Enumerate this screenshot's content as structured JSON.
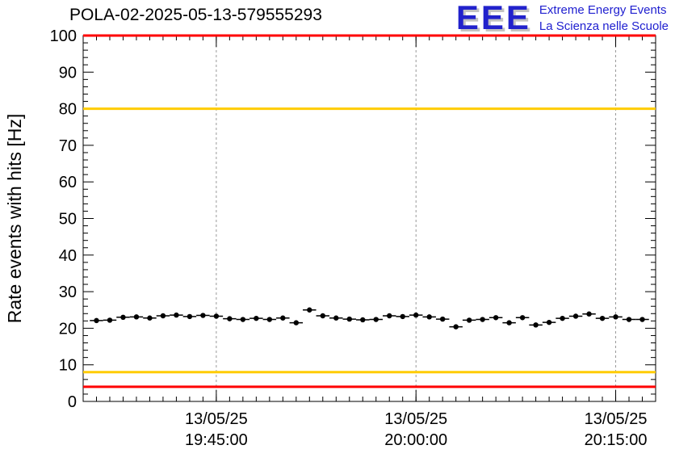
{
  "header": {
    "logo": {
      "text": "EEE",
      "line1": "Extreme Energy Events",
      "line2": "La Scienza nelle Scuole",
      "accent_color": "#2222cc"
    }
  },
  "chart_data": {
    "type": "scatter",
    "title": "POLA-02-2025-05-13-579555293",
    "ylabel": "Rate events with hits [Hz]",
    "xlabel": "",
    "ylim": [
      0,
      100
    ],
    "y_major_step": 10,
    "y_minor_step": 2,
    "x_minutes_range": [
      0,
      43
    ],
    "x_minor_step_minutes": 1,
    "x_major_ticks": [
      {
        "t": 10,
        "date": "13/05/25",
        "time": "19:45:00"
      },
      {
        "t": 25,
        "date": "13/05/25",
        "time": "20:00:00"
      },
      {
        "t": 40,
        "date": "13/05/25",
        "time": "20:15:00"
      }
    ],
    "grid_color": "#999999",
    "grid_vertical_dashed": true,
    "legend": "none",
    "threshold_lines": [
      {
        "y": 100,
        "color": "#ff0000"
      },
      {
        "y": 80,
        "color": "#ffcc00"
      },
      {
        "y": 8,
        "color": "#ffcc00"
      },
      {
        "y": 4,
        "color": "#ff0000"
      }
    ],
    "marker_color": "#000000",
    "marker_size": 3.2,
    "x_error_minutes": 0.5,
    "y_error_hz": 0.6,
    "points_t_minutes": [
      1,
      2,
      3,
      4,
      5,
      6,
      7,
      8,
      9,
      10,
      11,
      12,
      13,
      14,
      15,
      16,
      17,
      18,
      19,
      20,
      21,
      22,
      23,
      24,
      25,
      26,
      27,
      28,
      29,
      30,
      31,
      32,
      33,
      34,
      35,
      36,
      37,
      38,
      39,
      40,
      41,
      42
    ],
    "points_hz": [
      22.1,
      22.2,
      23.0,
      23.1,
      22.8,
      23.4,
      23.6,
      23.2,
      23.5,
      23.3,
      22.6,
      22.4,
      22.7,
      22.4,
      22.8,
      21.5,
      25.0,
      23.4,
      22.8,
      22.5,
      22.3,
      22.4,
      23.4,
      23.2,
      23.6,
      23.1,
      22.5,
      20.4,
      22.2,
      22.4,
      22.9,
      21.5,
      22.9,
      20.9,
      21.6,
      22.7,
      23.3,
      23.9,
      22.7,
      23.1,
      22.4,
      22.4
    ]
  }
}
